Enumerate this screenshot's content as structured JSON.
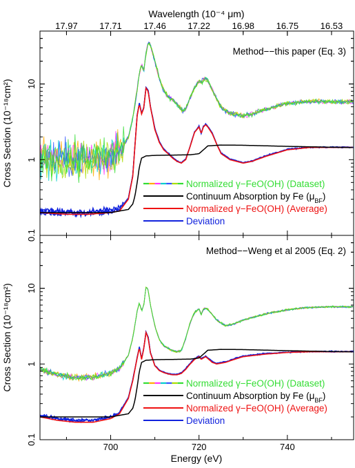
{
  "chart_data": {
    "type": "line",
    "shared": {
      "xlabel": "Energy (eV)",
      "xlim": [
        684,
        755
      ],
      "x_ticks": [
        {
          "value": 700,
          "label": "700"
        },
        {
          "value": 720,
          "label": "720"
        },
        {
          "value": 740,
          "label": "740"
        }
      ],
      "top_axis": {
        "label": "Wavelength (10⁻⁴ μm)",
        "ticks": [
          {
            "x": 690,
            "label": "17.97"
          },
          {
            "x": 700,
            "label": "17.71"
          },
          {
            "x": 710,
            "label": "17.46"
          },
          {
            "x": 720,
            "label": "17.22"
          },
          {
            "x": 730,
            "label": "16.98"
          },
          {
            "x": 740,
            "label": "16.75"
          },
          {
            "x": 750,
            "label": "16.53"
          }
        ]
      },
      "ylabel": "Cross Section (10⁻¹⁸cm²)",
      "y_scale": "log",
      "ylim": [
        0.1,
        50
      ],
      "y_ticks": [
        {
          "value": 0.1,
          "label": "0.1"
        },
        {
          "value": 1,
          "label": "1"
        },
        {
          "value": 10,
          "label": "10"
        }
      ],
      "legend_position": "right-middle",
      "legend_entries": [
        {
          "key": "dataset",
          "label": "Normalized γ−FeO(OH) (Dataset)",
          "color": "#33dd33",
          "multicolor": true
        },
        {
          "key": "mu",
          "label_main": "Continuum Absorption by Fe (μ",
          "label_sub": "BF",
          "label_end": ")",
          "color": "#000000"
        },
        {
          "key": "average",
          "label": "Normalized γ−FeO(OH) (Average)",
          "color": "#ee1111"
        },
        {
          "key": "deviation",
          "label": "Deviation",
          "color": "#1122dd"
        }
      ],
      "dataset_palette": [
        "#33dd33",
        "#ffaa00",
        "#ff33ff",
        "#00cccc",
        "#3355ff",
        "#aadd00",
        "#33dd33"
      ]
    },
    "panels": [
      {
        "annotation": "Method−−this paper (Eq. 3)",
        "series": [
          {
            "key": "dataset",
            "noise": 0.55,
            "noise_end": 0.07,
            "x": [
              684,
              690,
              695,
              700,
              702,
              704,
              705,
              706,
              706.5,
              707,
              707.5,
              708,
              708.5,
              709,
              710,
              711,
              712,
              713,
              714,
              715,
              716,
              716.5,
              717,
              718,
              719,
              720,
              720.5,
              721,
              721.5,
              722,
              723,
              724,
              725,
              726,
              728,
              730,
              732,
              735,
              740,
              745,
              750,
              754
            ],
            "y": [
              1.05,
              1.0,
              1.02,
              1.1,
              1.3,
              2.0,
              3.5,
              8.5,
              14,
              18,
              15,
              25,
              36,
              33,
              20,
              12,
              8.2,
              6.8,
              6.2,
              5.4,
              4.6,
              4.4,
              4.7,
              6.5,
              9,
              11,
              10.2,
              11.5,
              11.8,
              11,
              8.5,
              6.3,
              5.0,
              4.4,
              4.0,
              3.8,
              4.0,
              4.6,
              5.5,
              5.9,
              5.8,
              5.8
            ]
          },
          {
            "key": "mu",
            "x": [
              684,
              700,
              704,
              705,
              705.5,
              706,
              706.5,
              707,
              708,
              710,
              718,
              720,
              721,
              722,
              725,
              730,
              740,
              750,
              754
            ],
            "y": [
              0.2,
              0.2,
              0.22,
              0.26,
              0.33,
              0.5,
              0.8,
              1.05,
              1.12,
              1.14,
              1.16,
              1.2,
              1.35,
              1.52,
              1.56,
              1.55,
              1.5,
              1.46,
              1.45
            ]
          },
          {
            "key": "average",
            "x": [
              684,
              690,
              695,
              700,
              702,
              704,
              705,
              706,
              706.5,
              707,
              707.5,
              708,
              708.5,
              709,
              710,
              711,
              712,
              713,
              714,
              715,
              716,
              717,
              718,
              719,
              720,
              720.5,
              721,
              721.5,
              722,
              723,
              724,
              725,
              727,
              730,
              732,
              735,
              740,
              745,
              750,
              754
            ],
            "y": [
              0.2,
              0.19,
              0.19,
              0.2,
              0.21,
              0.3,
              0.6,
              3.8,
              5.5,
              4.0,
              4.8,
              8.8,
              8.0,
              5.0,
              2.5,
              1.7,
              1.35,
              1.2,
              1.05,
              0.95,
              0.9,
              1.0,
              1.5,
              2.3,
              2.7,
              2.2,
              2.7,
              2.9,
              2.7,
              2.2,
              1.6,
              1.2,
              1.0,
              0.9,
              0.95,
              1.1,
              1.35,
              1.45,
              1.45,
              1.45
            ]
          },
          {
            "key": "deviation",
            "x": [
              684,
              690,
              695,
              700,
              702,
              704,
              705,
              706,
              706.5,
              707,
              707.5,
              708,
              708.5,
              709,
              710,
              711,
              712,
              713,
              714,
              715,
              716,
              717,
              718,
              719,
              720,
              720.5,
              721,
              721.5,
              722,
              723,
              724,
              725,
              727,
              730,
              732,
              735,
              740,
              745,
              750,
              754
            ],
            "y": [
              0.21,
              0.2,
              0.2,
              0.21,
              0.22,
              0.31,
              0.62,
              3.9,
              5.6,
              4.1,
              4.9,
              9.0,
              8.2,
              5.1,
              2.6,
              1.75,
              1.38,
              1.22,
              1.07,
              0.96,
              0.91,
              1.02,
              1.52,
              2.35,
              2.75,
              2.25,
              2.75,
              2.95,
              2.75,
              2.25,
              1.62,
              1.22,
              1.02,
              0.91,
              0.96,
              1.12,
              1.37,
              1.46,
              1.46,
              1.46
            ]
          }
        ]
      },
      {
        "annotation": "Method−−Weng et al 2005 (Eq. 2)",
        "series": [
          {
            "key": "dataset",
            "noise": 0.09,
            "noise_end": 0.03,
            "x": [
              684,
              688,
              692,
              696,
              700,
              702,
              704,
              705,
              706,
              706.5,
              707,
              707.5,
              708,
              708.5,
              709,
              710,
              711,
              712,
              713,
              714,
              715,
              716,
              717,
              718,
              719,
              720,
              720.5,
              721,
              721.5,
              722,
              723,
              724,
              726,
              728,
              730,
              735,
              740,
              745,
              750,
              754
            ],
            "y": [
              0.85,
              0.72,
              0.66,
              0.67,
              0.75,
              0.88,
              1.3,
              2.2,
              5.0,
              6.5,
              5.0,
              6.0,
              10.5,
              9.5,
              6.0,
              3.2,
              2.1,
              1.75,
              1.6,
              1.5,
              1.45,
              1.5,
              2.2,
              3.5,
              4.8,
              5.4,
              4.5,
              5.3,
              5.5,
              5.3,
              4.5,
              3.8,
              3.2,
              3.4,
              3.8,
              4.6,
              5.2,
              5.6,
              5.7,
              5.7
            ]
          },
          {
            "key": "mu",
            "x": [
              684,
              700,
              704,
              705,
              705.5,
              706,
              706.5,
              707,
              708,
              710,
              718,
              720,
              721,
              722,
              725,
              730,
              740,
              750,
              754
            ],
            "y": [
              0.2,
              0.2,
              0.22,
              0.26,
              0.33,
              0.5,
              0.8,
              1.05,
              1.12,
              1.14,
              1.16,
              1.2,
              1.35,
              1.52,
              1.56,
              1.55,
              1.5,
              1.46,
              1.45
            ]
          },
          {
            "key": "average",
            "x": [
              684,
              688,
              692,
              696,
              700,
              702,
              704,
              705,
              706,
              706.5,
              707,
              707.5,
              708,
              708.5,
              709,
              710,
              711,
              712,
              713,
              714,
              715,
              716,
              717,
              718,
              719,
              720,
              720.5,
              721,
              721.5,
              722,
              723,
              724,
              726,
              728,
              730,
              735,
              740,
              745,
              750,
              754
            ],
            "y": [
              0.2,
              0.18,
              0.17,
              0.17,
              0.19,
              0.22,
              0.35,
              0.6,
              1.2,
              1.65,
              1.15,
              1.6,
              2.6,
              2.2,
              1.4,
              0.95,
              0.82,
              0.77,
              0.74,
              0.72,
              0.72,
              0.75,
              0.85,
              1.0,
              1.15,
              1.25,
              1.15,
              1.2,
              1.25,
              1.18,
              1.05,
              1.0,
              1.05,
              1.15,
              1.25,
              1.35,
              1.42,
              1.45,
              1.45,
              1.45
            ]
          },
          {
            "key": "deviation",
            "x": [
              684,
              688,
              692,
              696,
              700,
              702,
              704,
              705,
              706,
              706.5,
              707,
              707.5,
              708,
              708.5,
              709,
              710,
              711,
              712,
              713,
              714,
              715,
              716,
              717,
              718,
              719,
              720,
              720.5,
              721,
              721.5,
              722,
              723,
              724,
              726,
              728,
              730,
              735,
              740,
              745,
              750,
              754
            ],
            "y": [
              0.21,
              0.19,
              0.18,
              0.18,
              0.2,
              0.23,
              0.36,
              0.62,
              1.22,
              1.68,
              1.17,
              1.62,
              2.65,
              2.25,
              1.42,
              0.97,
              0.83,
              0.78,
              0.75,
              0.73,
              0.73,
              0.76,
              0.87,
              1.02,
              1.17,
              1.27,
              1.17,
              1.22,
              1.27,
              1.2,
              1.07,
              1.02,
              1.07,
              1.17,
              1.27,
              1.37,
              1.43,
              1.46,
              1.46,
              1.46
            ]
          }
        ]
      }
    ]
  }
}
